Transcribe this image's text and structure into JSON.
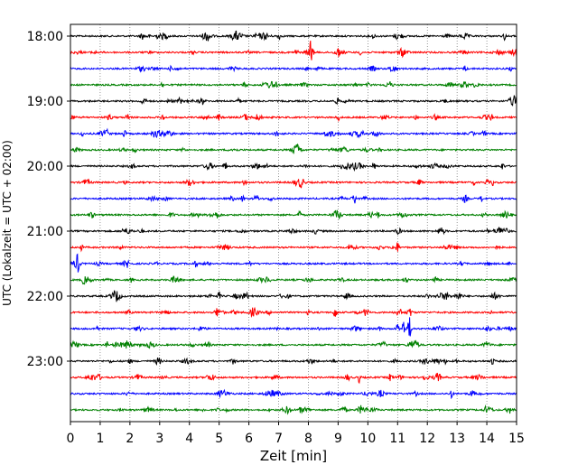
{
  "chart_data": {
    "type": "line",
    "title": "",
    "xlabel": "Zeit  [min]",
    "ylabel": "UTC (Lokalzeit = UTC + 02:00)",
    "xlim": [
      0,
      15
    ],
    "x_ticks": [
      "0",
      "1",
      "2",
      "3",
      "4",
      "5",
      "6",
      "7",
      "8",
      "9",
      "10",
      "11",
      "12",
      "13",
      "14",
      "15"
    ],
    "y_tick_labels": [
      "18:00",
      "19:00",
      "20:00",
      "21:00",
      "22:00",
      "23:00"
    ],
    "grid": "vertical dotted lines at each minute",
    "trace_colors": [
      "#000000",
      "#ff0000",
      "#0000ff",
      "#008000"
    ],
    "trace_count": 24,
    "trace_interval_min": 15,
    "events": [
      {
        "trace": 1,
        "x": 8.1,
        "amp": 2.2
      },
      {
        "trace": 1,
        "x": 9.0,
        "amp": 0.6
      },
      {
        "trace": 1,
        "x": 7.6,
        "amp": 0.5
      },
      {
        "trace": 0,
        "x": 2.4,
        "amp": 0.4
      },
      {
        "trace": 0,
        "x": 14.6,
        "amp": 0.4
      },
      {
        "trace": 5,
        "x": 3.1,
        "amp": 0.4
      },
      {
        "trace": 5,
        "x": 9.0,
        "amp": 0.35
      },
      {
        "trace": 6,
        "x": 13.9,
        "amp": 0.5
      },
      {
        "trace": 8,
        "x": 5.2,
        "amp": 0.5
      },
      {
        "trace": 8,
        "x": 10.2,
        "amp": 0.45
      },
      {
        "trace": 9,
        "x": 14.0,
        "amp": 0.4
      },
      {
        "trace": 10,
        "x": 5.8,
        "amp": 0.45
      },
      {
        "trace": 11,
        "x": 7.7,
        "amp": 0.55
      },
      {
        "trace": 12,
        "x": 1.8,
        "amp": 0.4
      },
      {
        "trace": 13,
        "x": 9.4,
        "amp": 0.5
      },
      {
        "trace": 13,
        "x": 11.0,
        "amp": 0.5
      },
      {
        "trace": 14,
        "x": 0.25,
        "amp": 0.9
      },
      {
        "trace": 16,
        "x": 5.0,
        "amp": 0.45
      },
      {
        "trace": 17,
        "x": 8.9,
        "amp": 0.8
      },
      {
        "trace": 18,
        "x": 11.2,
        "amp": 0.9
      },
      {
        "trace": 18,
        "x": 11.4,
        "amp": 1.0
      },
      {
        "trace": 18,
        "x": 11.0,
        "amp": 0.6
      },
      {
        "trace": 20,
        "x": 14.2,
        "amp": 0.45
      },
      {
        "trace": 21,
        "x": 9.7,
        "amp": 0.55
      },
      {
        "trace": 22,
        "x": 12.8,
        "amp": 0.5
      },
      {
        "trace": 23,
        "x": 14.0,
        "amp": 0.45
      }
    ]
  }
}
